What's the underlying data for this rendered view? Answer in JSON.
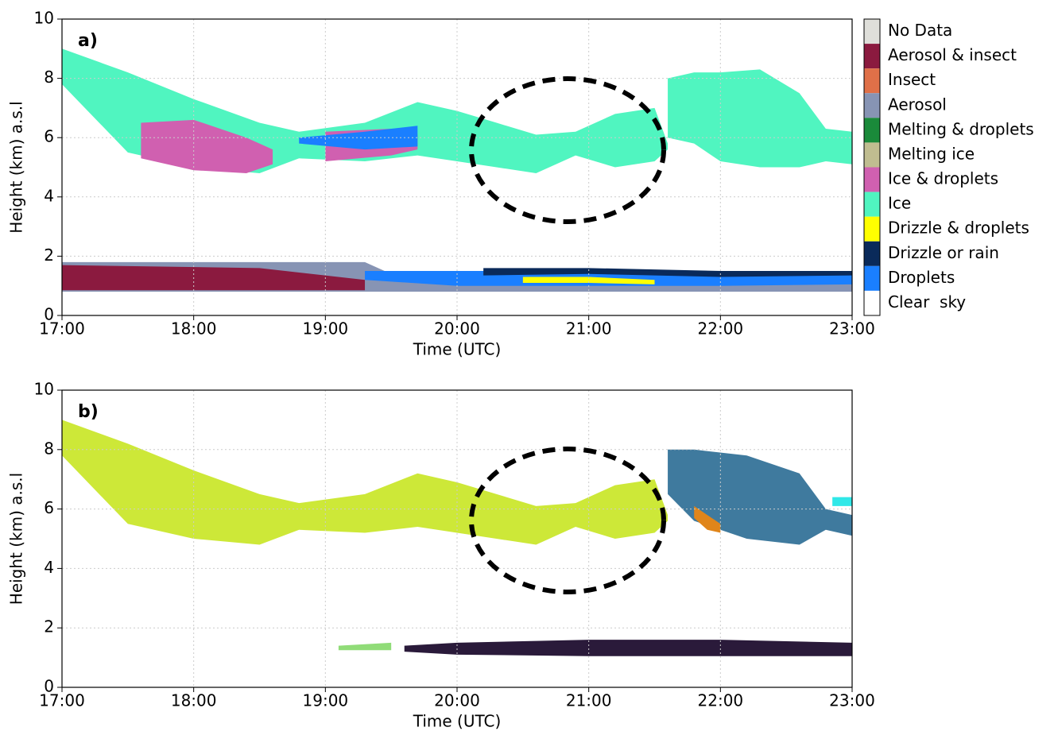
{
  "chart_data": [
    {
      "type": "band",
      "annotation": "a)",
      "xlabel": "Time (UTC)",
      "ylabel": "Height (km) a.s.l",
      "grid": true,
      "xlim": [
        17,
        23
      ],
      "xticks": [
        {
          "value": 17,
          "label": "17:00"
        },
        {
          "value": 18,
          "label": "18:00"
        },
        {
          "value": 19,
          "label": "19:00"
        },
        {
          "value": 20,
          "label": "20:00"
        },
        {
          "value": 21,
          "label": "21:00"
        },
        {
          "value": 22,
          "label": "22:00"
        },
        {
          "value": 23,
          "label": "23:00"
        }
      ],
      "ylim": [
        0,
        10
      ],
      "yticks": [
        0,
        2,
        4,
        6,
        8,
        10
      ],
      "legend": [
        {
          "name": "No Data",
          "color": "#dfdfda"
        },
        {
          "name": "Aerosol & insect",
          "color": "#8b1a3f"
        },
        {
          "name": "Insect",
          "color": "#e07048"
        },
        {
          "name": "Aerosol",
          "color": "#8794b4"
        },
        {
          "name": "Melting & droplets",
          "color": "#1a8a3a"
        },
        {
          "name": "Melting ice",
          "color": "#c0bd90"
        },
        {
          "name": "Ice & droplets",
          "color": "#d060b0"
        },
        {
          "name": "Ice",
          "color": "#50f5c0"
        },
        {
          "name": "Drizzle & droplets",
          "color": "#ffff00"
        },
        {
          "name": "Drizzle or rain",
          "color": "#0a2a5a"
        },
        {
          "name": "Droplets",
          "color": "#1a7fff"
        },
        {
          "name": "Clear  sky",
          "color": "#ffffff"
        }
      ],
      "regions": [
        {
          "color": "#50f5c0",
          "x": [
            17,
            17.5,
            18,
            18.5,
            18.8,
            19.3,
            19.7,
            20,
            20.3,
            20.6,
            20.9,
            21.2,
            21.5,
            21.6
          ],
          "high": [
            9,
            8.2,
            7.3,
            6.5,
            6.2,
            6.5,
            7.2,
            6.9,
            6.5,
            6.1,
            6.2,
            6.8,
            7,
            5.8
          ],
          "low": [
            7.8,
            5.5,
            5,
            4.8,
            5.3,
            5.2,
            5.4,
            5.2,
            5,
            4.8,
            5.4,
            5,
            5.2,
            5.6
          ]
        },
        {
          "color": "#50f5c0",
          "x": [
            21.6,
            21.8,
            22,
            22.3,
            22.6,
            22.8,
            23
          ],
          "high": [
            8,
            8.2,
            8.2,
            8.3,
            7.5,
            6.3,
            6.2
          ],
          "low": [
            6,
            5.8,
            5.2,
            5,
            5,
            5.2,
            5.1
          ]
        },
        {
          "color": "#d060b0",
          "x": [
            17.6,
            18,
            18.4,
            18.6
          ],
          "high": [
            6.5,
            6.6,
            6,
            5.6
          ],
          "low": [
            5.3,
            4.9,
            4.8,
            5.1
          ]
        },
        {
          "color": "#d060b0",
          "x": [
            19,
            19.5,
            19.7
          ],
          "high": [
            6.2,
            6.3,
            6.1
          ],
          "low": [
            5.2,
            5.4,
            5.6
          ]
        },
        {
          "color": "#1a7fff",
          "x": [
            18.8,
            19.3,
            19.7
          ],
          "high": [
            6,
            6.2,
            6.4
          ],
          "low": [
            5.8,
            5.6,
            5.7
          ]
        },
        {
          "color": "#8794b4",
          "x": [
            17,
            19.3,
            19.5,
            23
          ],
          "high": [
            1.8,
            1.8,
            1.4,
            1.4
          ],
          "low": [
            0.8,
            0.8,
            0.8,
            0.8
          ]
        },
        {
          "color": "#8b1a3f",
          "x": [
            17,
            18.5,
            19.3
          ],
          "high": [
            1.7,
            1.6,
            1.2
          ],
          "low": [
            0.85,
            0.85,
            0.85
          ]
        },
        {
          "color": "#1a7fff",
          "x": [
            19.3,
            20,
            21,
            22,
            23
          ],
          "high": [
            1.5,
            1.5,
            1.5,
            1.5,
            1.4
          ],
          "low": [
            1.2,
            1,
            1,
            1,
            1.05
          ]
        },
        {
          "color": "#0a2a5a",
          "x": [
            20.2,
            21,
            22,
            23
          ],
          "high": [
            1.6,
            1.6,
            1.5,
            1.5
          ],
          "low": [
            1.35,
            1.4,
            1.3,
            1.35
          ]
        },
        {
          "color": "#ffff00",
          "x": [
            20.5,
            21,
            21.5
          ],
          "high": [
            1.3,
            1.3,
            1.2
          ],
          "low": [
            1.1,
            1.1,
            1.05
          ]
        }
      ]
    },
    {
      "type": "band",
      "annotation": "b)",
      "xlabel": "Time (UTC)",
      "ylabel": "Height (km) a.s.l",
      "grid": true,
      "xlim": [
        17,
        23
      ],
      "xticks": [
        {
          "value": 17,
          "label": "17:00"
        },
        {
          "value": 18,
          "label": "18:00"
        },
        {
          "value": 19,
          "label": "19:00"
        },
        {
          "value": 20,
          "label": "20:00"
        },
        {
          "value": 21,
          "label": "21:00"
        },
        {
          "value": 22,
          "label": "22:00"
        },
        {
          "value": 23,
          "label": "23:00"
        }
      ],
      "ylim": [
        0,
        10
      ],
      "yticks": [
        0,
        2,
        4,
        6,
        8,
        10
      ],
      "regions": [
        {
          "color": "#cde838",
          "x": [
            17,
            17.5,
            18,
            18.5,
            18.8,
            19.3,
            19.7,
            20,
            20.3,
            20.6,
            20.9,
            21.2,
            21.5,
            21.6
          ],
          "high": [
            9,
            8.2,
            7.3,
            6.5,
            6.2,
            6.5,
            7.2,
            6.9,
            6.5,
            6.1,
            6.2,
            6.8,
            7,
            5.8
          ],
          "low": [
            7.8,
            5.5,
            5,
            4.8,
            5.3,
            5.2,
            5.4,
            5.2,
            5,
            4.8,
            5.4,
            5,
            5.2,
            5.6
          ]
        },
        {
          "color": "#3f7a9e",
          "x": [
            21.6,
            21.8,
            22.2,
            22.6,
            22.8,
            23
          ],
          "high": [
            8,
            8,
            7.8,
            7.2,
            6,
            5.8
          ],
          "low": [
            6.5,
            5.6,
            5,
            4.8,
            5.3,
            5.1
          ]
        },
        {
          "color": "#e0851a",
          "x": [
            21.8,
            21.9,
            22
          ],
          "high": [
            6.1,
            5.8,
            5.5
          ],
          "low": [
            5.7,
            5.3,
            5.2
          ]
        },
        {
          "color": "#2a1a3a",
          "x": [
            19.6,
            20,
            21,
            22,
            23
          ],
          "high": [
            1.4,
            1.5,
            1.6,
            1.6,
            1.5
          ],
          "low": [
            1.2,
            1.1,
            1.05,
            1.05,
            1.05
          ]
        },
        {
          "color": "#90dc78",
          "x": [
            19.1,
            19.5
          ],
          "high": [
            1.4,
            1.5
          ],
          "low": [
            1.25,
            1.25
          ]
        },
        {
          "color": "#30e8e8",
          "x": [
            22.85,
            23
          ],
          "high": [
            6.4,
            6.4
          ],
          "low": [
            6.1,
            6.1
          ]
        }
      ]
    }
  ]
}
